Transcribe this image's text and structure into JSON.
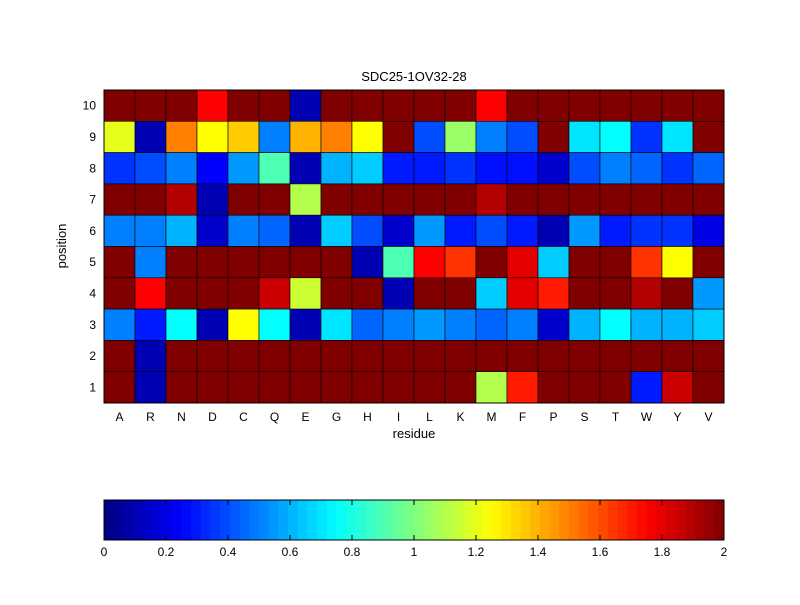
{
  "chart_data": {
    "type": "heatmap",
    "title": "SDC25-1OV32-28",
    "xlabel": "residue",
    "ylabel": "position",
    "x_categories": [
      "A",
      "R",
      "N",
      "D",
      "C",
      "Q",
      "E",
      "G",
      "H",
      "I",
      "L",
      "K",
      "M",
      "F",
      "P",
      "S",
      "T",
      "W",
      "Y",
      "V"
    ],
    "y_categories": [
      "10",
      "9",
      "8",
      "7",
      "6",
      "5",
      "4",
      "3",
      "2",
      "1"
    ],
    "values": [
      [
        2,
        2,
        2,
        1.75,
        2,
        2,
        0.1,
        2,
        2,
        2,
        2,
        2,
        1.75,
        2,
        2,
        2,
        2,
        2,
        2,
        2
      ],
      [
        1.2,
        0.1,
        1.5,
        1.25,
        1.35,
        0.5,
        1.4,
        1.5,
        1.25,
        2,
        0.4,
        1.05,
        0.5,
        0.4,
        2,
        0.7,
        0.75,
        0.35,
        0.7,
        2
      ],
      [
        0.35,
        0.4,
        0.5,
        0.25,
        0.55,
        0.9,
        0.1,
        0.6,
        0.65,
        0.3,
        0.3,
        0.35,
        0.28,
        0.28,
        0.15,
        0.4,
        0.5,
        0.45,
        0.35,
        0.45
      ],
      [
        2,
        2,
        1.9,
        0.1,
        2,
        2,
        1.1,
        2,
        2,
        2,
        2,
        2,
        1.9,
        2,
        2,
        2,
        2,
        2,
        2,
        2
      ],
      [
        0.5,
        0.5,
        0.6,
        0.15,
        0.5,
        0.45,
        0.1,
        0.65,
        0.4,
        0.15,
        0.55,
        0.3,
        0.4,
        0.3,
        0.1,
        0.55,
        0.3,
        0.35,
        0.35,
        0.2
      ],
      [
        2,
        0.5,
        2,
        2,
        2,
        2,
        2,
        2,
        0.1,
        0.9,
        1.75,
        1.65,
        2,
        1.8,
        0.65,
        2,
        2,
        1.65,
        1.25,
        2
      ],
      [
        2,
        1.75,
        2,
        2,
        2,
        1.85,
        1.15,
        2,
        2,
        0.1,
        2,
        2,
        0.65,
        1.8,
        1.7,
        2,
        2,
        1.9,
        2,
        0.55
      ],
      [
        0.5,
        0.3,
        0.75,
        0.1,
        1.25,
        0.75,
        0.1,
        0.7,
        0.45,
        0.5,
        0.55,
        0.5,
        0.45,
        0.5,
        0.15,
        0.6,
        0.75,
        0.6,
        0.6,
        0.65
      ],
      [
        2,
        0.1,
        2,
        2,
        2,
        2,
        2,
        2,
        2,
        2,
        2,
        2,
        2,
        2,
        2,
        2,
        2,
        2,
        2,
        2
      ],
      [
        2,
        0.1,
        2,
        2,
        2,
        2,
        2,
        2,
        2,
        2,
        2,
        2,
        1.1,
        1.7,
        2,
        2,
        2,
        0.3,
        1.85,
        2
      ]
    ],
    "colorbar": {
      "range": [
        0,
        2
      ],
      "ticks": [
        "0",
        "0.2",
        "0.4",
        "0.6",
        "0.8",
        "1",
        "1.2",
        "1.4",
        "1.6",
        "1.8",
        "2"
      ],
      "colormap": "jet",
      "placement": "bottom"
    }
  }
}
